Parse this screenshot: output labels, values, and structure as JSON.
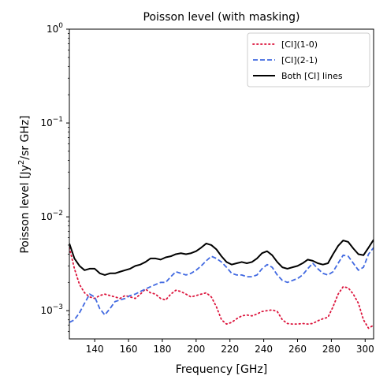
{
  "chart_data": {
    "type": "line",
    "title": "Poisson level (with masking)",
    "xlabel": "Frequency [GHz]",
    "ylabel_prefix": "Poisson level [Jy",
    "ylabel_sup": "2",
    "ylabel_suffix": "/sr GHz]",
    "xlim": [
      125,
      305
    ],
    "ylim": [
      0.0005,
      1.0
    ],
    "yscale": "log",
    "grid": false,
    "legend_position": "top-right",
    "x_ticks": [
      140,
      160,
      180,
      200,
      220,
      240,
      260,
      280,
      300
    ],
    "x_tick_labels": [
      "140",
      "160",
      "180",
      "200",
      "220",
      "240",
      "260",
      "280",
      "300"
    ],
    "y_ticks": [
      {
        "value": 0.001,
        "base": "10",
        "exp": "−3"
      },
      {
        "value": 0.01,
        "base": "10",
        "exp": "−2"
      },
      {
        "value": 0.1,
        "base": "10",
        "exp": "−1"
      },
      {
        "value": 1.0,
        "base": "10",
        "exp": "0"
      }
    ],
    "series": [
      {
        "name": "[CI](1-0)",
        "color": "#dc143c",
        "style": "dotted",
        "x": [
          125,
          128,
          131,
          134,
          137,
          140,
          143,
          146,
          149,
          152,
          155,
          158,
          161,
          164,
          167,
          170,
          173,
          176,
          179,
          182,
          185,
          188,
          191,
          194,
          197,
          200,
          203,
          206,
          209,
          212,
          215,
          218,
          221,
          224,
          227,
          230,
          233,
          236,
          239,
          242,
          245,
          248,
          251,
          254,
          257,
          260,
          263,
          266,
          269,
          272,
          275,
          278,
          281,
          284,
          287,
          290,
          293,
          296,
          299,
          302,
          305
        ],
        "y": [
          0.0047,
          0.0028,
          0.0019,
          0.00155,
          0.0014,
          0.00135,
          0.00145,
          0.0015,
          0.00145,
          0.0014,
          0.00135,
          0.00145,
          0.0014,
          0.00135,
          0.0015,
          0.0017,
          0.00155,
          0.0015,
          0.00135,
          0.0013,
          0.0015,
          0.00165,
          0.0016,
          0.0015,
          0.0014,
          0.00145,
          0.0015,
          0.00155,
          0.0014,
          0.0011,
          0.0008,
          0.00072,
          0.00075,
          0.00082,
          0.00088,
          0.0009,
          0.00088,
          0.00092,
          0.00098,
          0.001,
          0.00102,
          0.00098,
          0.0008,
          0.00073,
          0.00072,
          0.00072,
          0.00073,
          0.00072,
          0.00073,
          0.00078,
          0.00082,
          0.00085,
          0.0011,
          0.0015,
          0.0018,
          0.00175,
          0.0015,
          0.0012,
          0.0008,
          0.00065,
          0.0007
        ]
      },
      {
        "name": "[CI](2-1)",
        "color": "#4169e1",
        "style": "dashed",
        "x": [
          125,
          128,
          131,
          134,
          137,
          140,
          143,
          146,
          149,
          152,
          155,
          158,
          161,
          164,
          167,
          170,
          173,
          176,
          179,
          182,
          185,
          188,
          191,
          194,
          197,
          200,
          203,
          206,
          209,
          212,
          215,
          218,
          221,
          224,
          227,
          230,
          233,
          236,
          239,
          242,
          245,
          248,
          251,
          254,
          257,
          260,
          263,
          266,
          269,
          272,
          275,
          278,
          281,
          284,
          287,
          290,
          293,
          296,
          299,
          302,
          305
        ],
        "y": [
          0.00075,
          0.0008,
          0.00095,
          0.0012,
          0.0015,
          0.0014,
          0.00105,
          0.0009,
          0.00105,
          0.00125,
          0.0013,
          0.00135,
          0.00145,
          0.0015,
          0.0016,
          0.0017,
          0.0018,
          0.0019,
          0.002,
          0.002,
          0.0023,
          0.0026,
          0.0025,
          0.0024,
          0.0025,
          0.0027,
          0.003,
          0.0034,
          0.0038,
          0.0036,
          0.0033,
          0.0029,
          0.0025,
          0.0024,
          0.0024,
          0.0023,
          0.0023,
          0.0024,
          0.0028,
          0.0031,
          0.0029,
          0.0024,
          0.0021,
          0.002,
          0.0021,
          0.0022,
          0.0024,
          0.0028,
          0.0032,
          0.0028,
          0.0025,
          0.0024,
          0.0026,
          0.0032,
          0.0039,
          0.0038,
          0.0032,
          0.0027,
          0.0029,
          0.004,
          0.0047
        ]
      },
      {
        "name": "Both [CI] lines",
        "color": "#000000",
        "style": "solid",
        "x": [
          125,
          128,
          131,
          134,
          137,
          140,
          143,
          146,
          149,
          152,
          155,
          158,
          161,
          164,
          167,
          170,
          173,
          176,
          179,
          182,
          185,
          188,
          191,
          194,
          197,
          200,
          203,
          206,
          209,
          212,
          215,
          218,
          221,
          224,
          227,
          230,
          233,
          236,
          239,
          242,
          245,
          248,
          251,
          254,
          257,
          260,
          263,
          266,
          269,
          272,
          275,
          278,
          281,
          284,
          287,
          290,
          293,
          296,
          299,
          302,
          305
        ],
        "y": [
          0.0052,
          0.0036,
          0.003,
          0.0027,
          0.0028,
          0.0028,
          0.0025,
          0.0024,
          0.0025,
          0.0025,
          0.0026,
          0.0027,
          0.0028,
          0.003,
          0.0031,
          0.0033,
          0.0036,
          0.0036,
          0.0035,
          0.0037,
          0.0038,
          0.004,
          0.0041,
          0.004,
          0.0041,
          0.0043,
          0.0047,
          0.0052,
          0.005,
          0.0045,
          0.0038,
          0.0033,
          0.0031,
          0.0032,
          0.0033,
          0.0032,
          0.0033,
          0.0036,
          0.0041,
          0.0043,
          0.0039,
          0.0033,
          0.0029,
          0.0028,
          0.0029,
          0.003,
          0.0032,
          0.0035,
          0.0034,
          0.0032,
          0.0031,
          0.0032,
          0.004,
          0.0049,
          0.0056,
          0.0054,
          0.0046,
          0.004,
          0.0039,
          0.0047,
          0.0057
        ]
      }
    ]
  }
}
